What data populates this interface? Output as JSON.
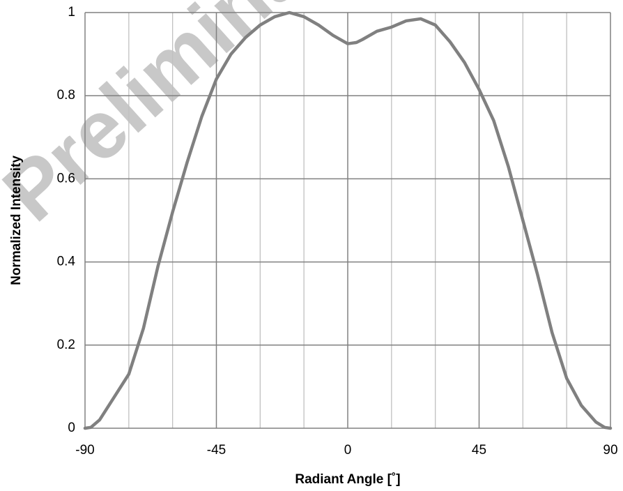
{
  "chart_data": {
    "type": "line",
    "watermark": "Preliminary",
    "x_label": "Radiant Angle [˚]",
    "y_label": "Normalized Intensity",
    "x": [
      -90,
      -88,
      -85,
      -80,
      -75,
      -70,
      -65,
      -60,
      -55,
      -50,
      -45,
      -40,
      -35,
      -30,
      -25,
      -20,
      -15,
      -10,
      -5,
      0,
      3,
      5,
      10,
      15,
      20,
      25,
      30,
      35,
      40,
      45,
      50,
      55,
      60,
      65,
      70,
      75,
      80,
      85,
      88,
      90
    ],
    "series": [
      {
        "color": "#808080",
        "values": [
          0,
          0.002,
          0.02,
          0.075,
          0.13,
          0.24,
          0.39,
          0.52,
          0.64,
          0.75,
          0.84,
          0.9,
          0.94,
          0.97,
          0.99,
          1.0,
          0.99,
          0.97,
          0.945,
          0.925,
          0.928,
          0.935,
          0.955,
          0.965,
          0.98,
          0.985,
          0.97,
          0.93,
          0.88,
          0.815,
          0.74,
          0.63,
          0.5,
          0.37,
          0.23,
          0.12,
          0.055,
          0.015,
          0.002,
          0
        ]
      }
    ],
    "xlim": [
      -90,
      90
    ],
    "ylim": [
      0,
      1
    ],
    "xticks": [
      -90,
      -45,
      0,
      45,
      90
    ],
    "x_minor_ticks": [
      -75,
      -60,
      -30,
      -15,
      15,
      30,
      60,
      75
    ],
    "yticks": [
      0,
      0.2,
      0.4,
      0.6,
      0.8,
      1
    ],
    "grid": true
  }
}
